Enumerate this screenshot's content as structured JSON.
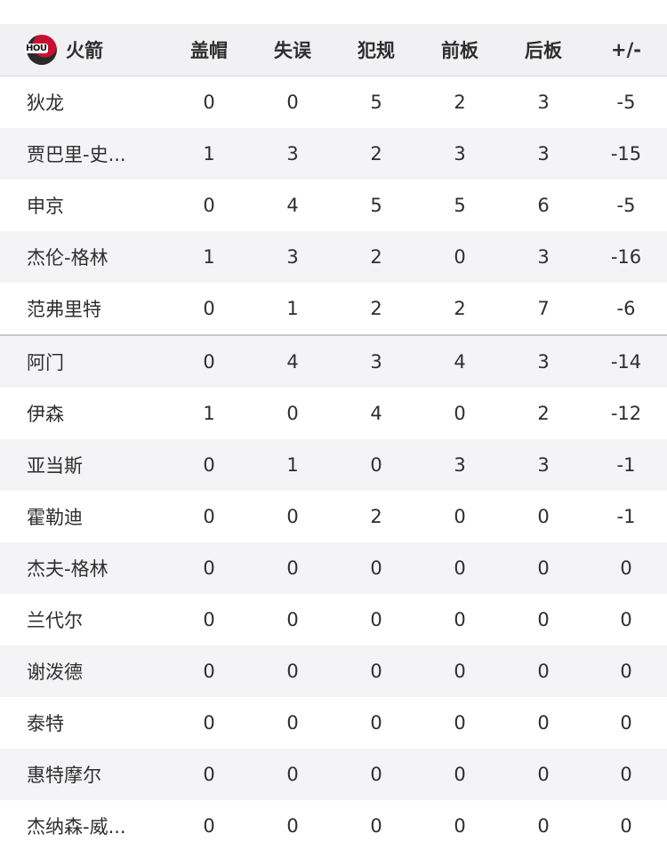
{
  "team": {
    "name": "火箭",
    "logo_text": "HOU",
    "color": "#c8102e"
  },
  "columns": [
    "盖帽",
    "失误",
    "犯规",
    "前板",
    "后板",
    "+/-"
  ],
  "starters": [
    {
      "name": "狄龙",
      "stats": [
        "0",
        "0",
        "5",
        "2",
        "3",
        "-5"
      ]
    },
    {
      "name": "贾巴里-史...",
      "stats": [
        "1",
        "3",
        "2",
        "3",
        "3",
        "-15"
      ]
    },
    {
      "name": "申京",
      "stats": [
        "0",
        "4",
        "5",
        "5",
        "6",
        "-5"
      ]
    },
    {
      "name": "杰伦-格林",
      "stats": [
        "1",
        "3",
        "2",
        "0",
        "3",
        "-16"
      ]
    },
    {
      "name": "范弗里特",
      "stats": [
        "0",
        "1",
        "2",
        "2",
        "7",
        "-6"
      ]
    }
  ],
  "bench": [
    {
      "name": "阿门",
      "stats": [
        "0",
        "4",
        "3",
        "4",
        "3",
        "-14"
      ]
    },
    {
      "name": "伊森",
      "stats": [
        "1",
        "0",
        "4",
        "0",
        "2",
        "-12"
      ]
    },
    {
      "name": "亚当斯",
      "stats": [
        "0",
        "1",
        "0",
        "3",
        "3",
        "-1"
      ]
    },
    {
      "name": "霍勒迪",
      "stats": [
        "0",
        "0",
        "2",
        "0",
        "0",
        "-1"
      ]
    },
    {
      "name": "杰夫-格林",
      "stats": [
        "0",
        "0",
        "0",
        "0",
        "0",
        "0"
      ]
    },
    {
      "name": "兰代尔",
      "stats": [
        "0",
        "0",
        "0",
        "0",
        "0",
        "0"
      ]
    },
    {
      "name": "谢泼德",
      "stats": [
        "0",
        "0",
        "0",
        "0",
        "0",
        "0"
      ]
    },
    {
      "name": "泰特",
      "stats": [
        "0",
        "0",
        "0",
        "0",
        "0",
        "0"
      ]
    },
    {
      "name": "惠特摩尔",
      "stats": [
        "0",
        "0",
        "0",
        "0",
        "0",
        "0"
      ]
    },
    {
      "name": "杰纳森-威...",
      "stats": [
        "0",
        "0",
        "0",
        "0",
        "0",
        "0"
      ]
    }
  ]
}
